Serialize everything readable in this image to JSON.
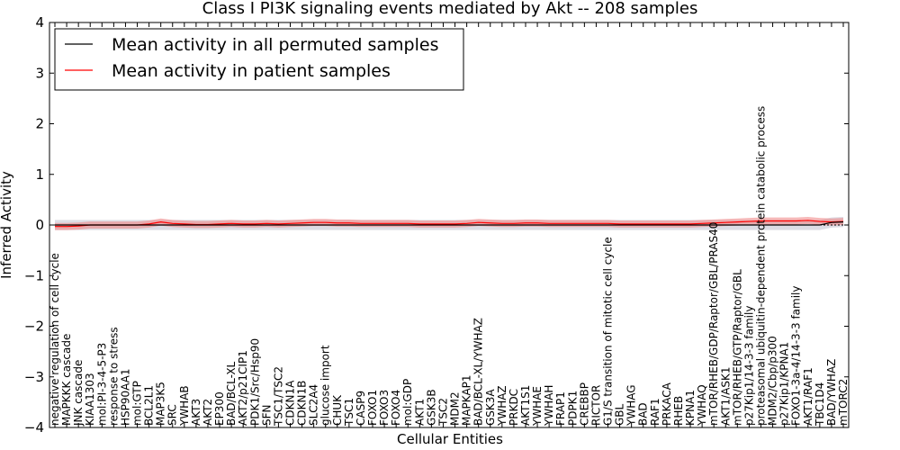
{
  "chart_data": {
    "type": "line",
    "title": "Class I PI3K signaling events mediated by Akt -- 208 samples",
    "xlabel": "Cellular Entities",
    "ylabel": "Inferred Activity",
    "ylim": [
      -4,
      4
    ],
    "yticks": [
      "4",
      "3",
      "2",
      "1",
      "0",
      "−1",
      "−2",
      "−3",
      "−4"
    ],
    "ytick_values": [
      4,
      3,
      2,
      1,
      0,
      -1,
      -2,
      -3,
      -4
    ],
    "legend": {
      "position": "top-left",
      "entries": [
        {
          "label": "Mean activity in all permuted samples",
          "color": "#000000"
        },
        {
          "label": "Mean activity in patient samples",
          "color": "#ff0000"
        }
      ]
    },
    "categories": [
      "negative regulation of cell cycle",
      "MAPKKK cascade",
      "JNK cascade",
      "KIAA1303",
      "mol:PI-3-4-5-P3",
      "response to stress",
      "HSP90AA1",
      "mol:GTP",
      "BCL2L1",
      "MAP3K5",
      "SRC",
      "YWHAB",
      "AKT3",
      "AKT2",
      "EP300",
      "BAD/BCL-XL",
      "AKT2/p21CIP1",
      "PDK1/Src/Hsp90",
      "SFN",
      "TSC1/TSC2",
      "CDKN1A",
      "CDKN1B",
      "SLC2A4",
      "glucose import",
      "CHUK",
      "TSC1",
      "CASP9",
      "FOXO1",
      "FOXO3",
      "FOXO4",
      "mol:GDP",
      "AKT1",
      "GSK3B",
      "TSC2",
      "MDM2",
      "MAPKAP1",
      "BAD/BCL-XL/YWHAZ",
      "GSK3A",
      "YWHAZ",
      "PRKDC",
      "AKT1S1",
      "YWHAE",
      "YWHAH",
      "FRAP1",
      "PDPK1",
      "CREBBP",
      "RICTOR",
      "G1/S transition of mitotic cell cycle",
      "GBL",
      "YWHAG",
      "BAD",
      "RAF1",
      "PRKACA",
      "RHEB",
      "KPNA1",
      "YWHAQ",
      "mTOR/RHEB/GDP/Raptor/GBL/PRAS40",
      "AKT1/ASK1",
      "mTOR/RHEB/GTP/Raptor/GBL",
      "p27Kip1/14-3-3 family",
      "proteasomal ubiquitin-dependent protein catabolic process",
      "MDM2/Cbp/p300",
      "p27Kip1/KPNA1",
      "FOXO1-3a-4/14-3-3 family",
      "AKT1/RAF1",
      "TBC1D4",
      "BAD/YWHAZ",
      "mTORC2"
    ],
    "series": [
      {
        "name": "Mean activity in all permuted samples",
        "color": "#000000",
        "values": [
          0,
          0,
          0,
          0,
          0,
          0,
          0,
          0,
          0,
          0,
          0,
          0,
          0,
          0,
          0,
          0,
          0,
          0,
          0,
          0,
          0,
          0,
          0,
          0,
          0,
          0,
          0,
          0,
          0,
          0,
          0,
          0,
          0,
          0,
          0,
          0,
          0,
          0,
          0,
          0,
          0,
          0,
          0,
          0,
          0,
          0,
          0,
          0,
          0,
          0,
          0,
          0,
          0,
          0,
          0,
          0,
          0,
          0,
          0,
          0,
          0,
          0,
          0,
          0,
          0,
          0,
          0.05,
          0.06
        ],
        "band": 0.1,
        "band_color": "#bbbbcc"
      },
      {
        "name": "Mean activity in patient samples",
        "color": "#ff0000",
        "values": [
          -0.03,
          -0.03,
          -0.02,
          0,
          0,
          0,
          0,
          0,
          0.02,
          0.06,
          0.03,
          0.02,
          0.01,
          0.01,
          0.02,
          0.03,
          0.02,
          0.02,
          0.03,
          0.02,
          0.03,
          0.04,
          0.05,
          0.05,
          0.04,
          0.04,
          0.03,
          0.03,
          0.03,
          0.03,
          0.03,
          0.02,
          0.02,
          0.02,
          0.02,
          0.03,
          0.05,
          0.04,
          0.03,
          0.03,
          0.04,
          0.04,
          0.03,
          0.03,
          0.03,
          0.03,
          0.03,
          0.03,
          0.02,
          0.02,
          0.02,
          0.02,
          0.02,
          0.02,
          0.02,
          0.03,
          0.04,
          0.05,
          0.06,
          0.07,
          0.08,
          0.08,
          0.08,
          0.08,
          0.09,
          0.07,
          0.06,
          0.07
        ],
        "band": 0.07,
        "band_color": "#f08080"
      }
    ]
  }
}
